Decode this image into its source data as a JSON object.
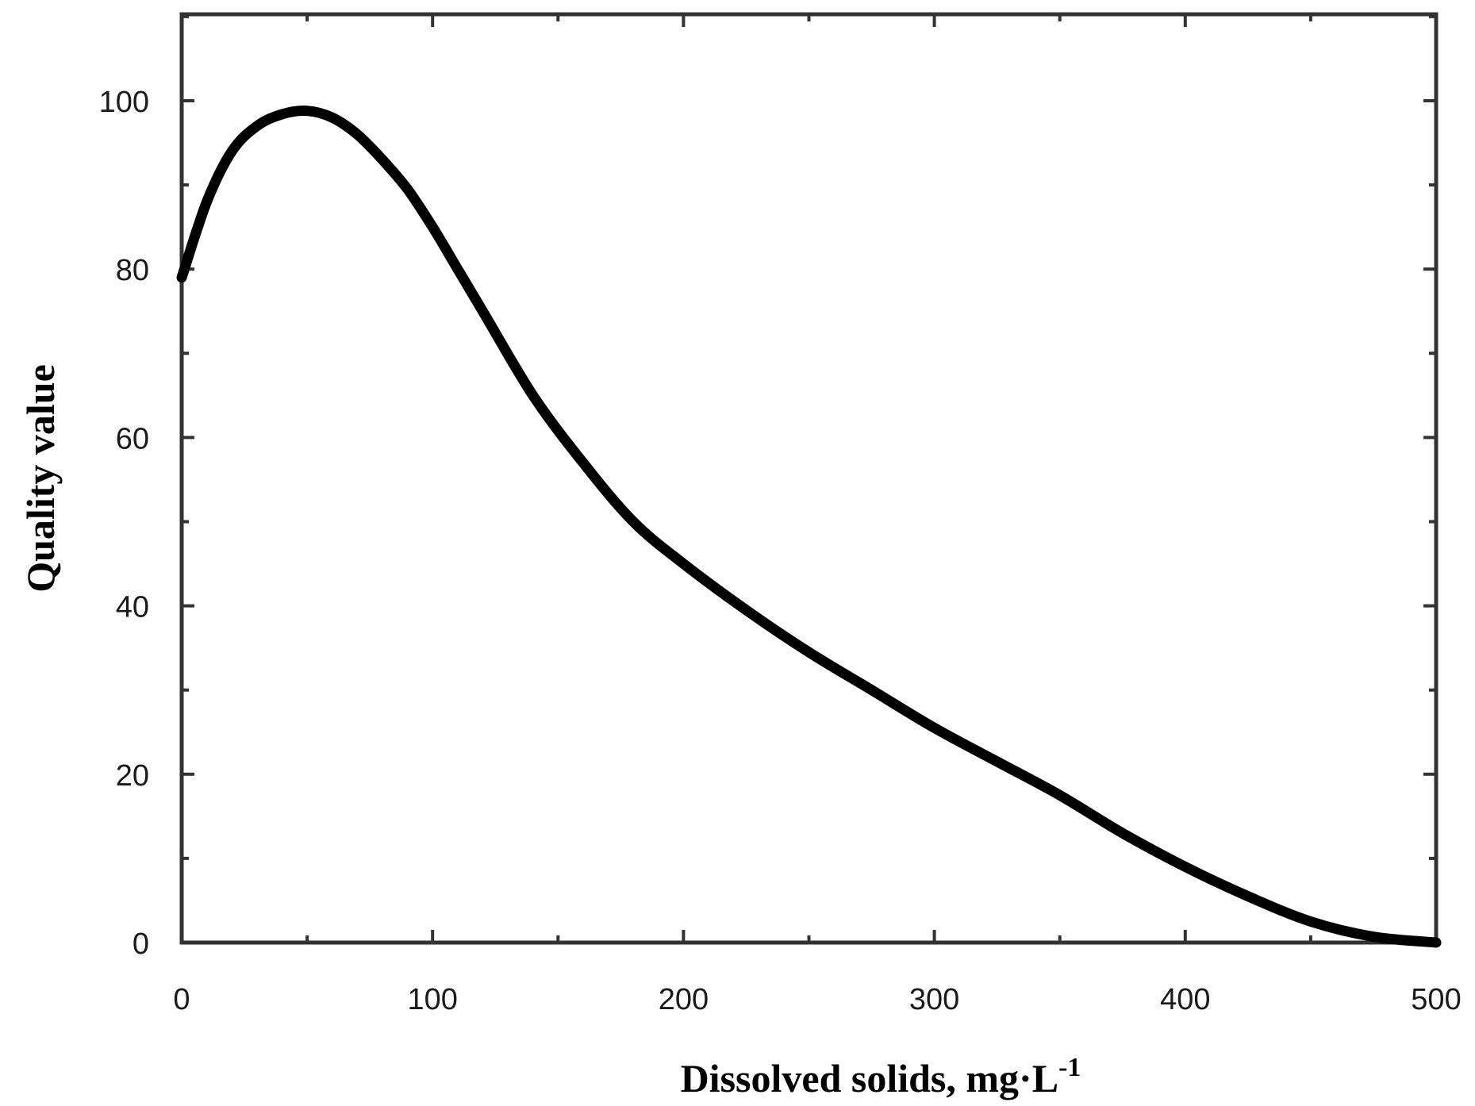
{
  "chart_data": {
    "type": "line",
    "title": "",
    "xlabel": "Dissolved solids, mg·L",
    "xlabel_superscript": "-1",
    "ylabel": "Quality value",
    "xlim": [
      0,
      500
    ],
    "ylim": [
      0,
      110
    ],
    "x_ticks": [
      0,
      100,
      200,
      300,
      400,
      500
    ],
    "y_ticks": [
      0,
      20,
      40,
      60,
      80,
      100
    ],
    "x_tick_labels": [
      "0",
      "100",
      "200",
      "300",
      "400",
      "500"
    ],
    "y_tick_labels": [
      "0",
      "20",
      "40",
      "60",
      "80",
      "100"
    ],
    "x_minor_step": 50,
    "y_minor_step": 10,
    "grid": false,
    "legend": "none",
    "line_color": "#000000",
    "series": [
      {
        "x": [
          0,
          10,
          20,
          30,
          40,
          50,
          60,
          70,
          80,
          90,
          100,
          110,
          120,
          140,
          160,
          180,
          200,
          225,
          250,
          275,
          300,
          325,
          350,
          375,
          400,
          425,
          450,
          475,
          500
        ],
        "values": [
          79,
          88,
          94,
          97,
          98.4,
          98.8,
          98,
          96,
          93,
          89.5,
          85,
          80,
          75,
          65,
          57,
          50,
          45,
          39.5,
          34.5,
          30,
          25.5,
          21.5,
          17.5,
          13,
          9,
          5.5,
          2.5,
          0.7,
          0
        ]
      }
    ]
  }
}
